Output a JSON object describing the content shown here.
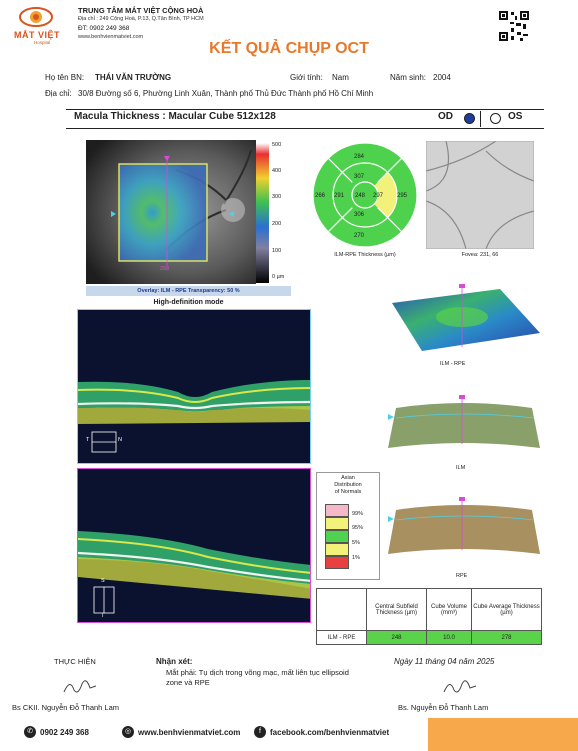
{
  "header": {
    "hospital_name": "TRUNG TÂM MẮT VIỆT CỘNG HOÀ",
    "address": "Địa chỉ : 249 Cộng Hoà, P.13, Q.Tân Bình, TP HCM",
    "phone": "ĐT: 0902 249 368",
    "website": "www.benhvienmatviet.com",
    "logo_text": "MẮT VIỆT",
    "logo_sub": "Hospital"
  },
  "title": "KẾT QUẢ CHỤP OCT",
  "patient": {
    "name_label": "Họ tên BN:",
    "name_value": "THÁI VĂN TRƯỜNG",
    "gender_label": "Giới tính:",
    "gender_value": "Nam",
    "birth_label": "Năm sinh:",
    "birth_value": "2004",
    "address_label": "Địa chỉ:",
    "address_value": "30/8 Đường số 6, Phường Linh Xuân, Thành phố Thủ Đức Thành phố Hồ Chí Minh"
  },
  "macula": {
    "title": "Macula Thickness : Macular Cube 512x128",
    "od_label": "OD",
    "os_label": "OS",
    "od_selected": true,
    "colors": {
      "od_dot": "#1f3d9e"
    }
  },
  "fundus": {
    "scale_ticks": [
      "500",
      "400",
      "300",
      "200",
      "100",
      "0 µm"
    ],
    "marker_value": "258",
    "overlay_label": "Overlay: ILM - RPE  Transparency: 50 %",
    "hd_label": "High-definition mode"
  },
  "etdrs": {
    "center": "248",
    "inner_sup": "307",
    "inner_inf": "306",
    "inner_temp": "291",
    "inner_nas": "297",
    "outer_sup": "284",
    "outer_inf": "270",
    "outer_temp": "266",
    "outer_nas": "295",
    "caption": "ILM-RPE Thickness (µm)"
  },
  "fovea": {
    "caption": "Fovea: 231, 66"
  },
  "surfaces": {
    "ilm_rpe": "ILM - RPE",
    "ilm": "ILM",
    "rpe": "RPE"
  },
  "bscan": {
    "t": "T",
    "n": "N",
    "s": "S",
    "i": "I"
  },
  "normals": {
    "title": [
      "Asian",
      "Distribution",
      "of Normals"
    ],
    "levels": [
      {
        "label": "99%",
        "color": "#f4b8c8"
      },
      {
        "label": "95%",
        "color": "#f2f27a"
      },
      {
        "label": "5%",
        "color": "#4fd24f"
      },
      {
        "label": "1%",
        "color": "#f2f27a"
      },
      {
        "label": "",
        "color": "#e84040"
      }
    ]
  },
  "results": {
    "headers": [
      "Central Subfield Thickness (µm)",
      "Cube Volume (mm³)",
      "Cube Average Thickness (µm)"
    ],
    "row_label": "ILM - RPE",
    "values": [
      "248",
      "10.0",
      "278"
    ]
  },
  "footer": {
    "thuc_hien": "THỰC HIỆN",
    "nhan_xet_label": "Nhận xét:",
    "nhan_xet_text": "Mắt phải: Tụ dịch trong võng mạc, mất liên tục ellipsoid zone và RPE",
    "date": "Ngày 11 tháng 04 năm 2025",
    "left_doctor": "Bs CKII. Nguyễn Đỗ Thanh Lam",
    "right_doctor": "Bs. Nguyễn Đỗ Thanh Lam",
    "phone": "0902 249 368",
    "website": "www.benhvienmatviet.com",
    "facebook": "facebook.com/benhvienmatviet"
  }
}
